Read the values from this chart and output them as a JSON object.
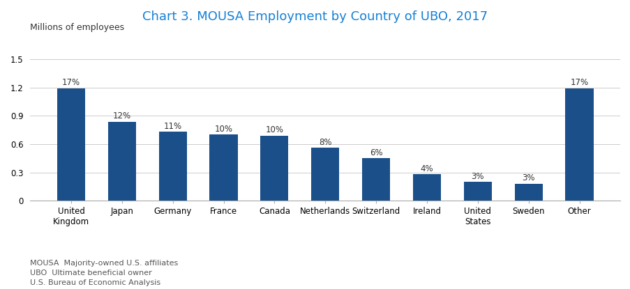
{
  "title": "Chart 3. MOUSA Employment by Country of UBO, 2017",
  "title_color": "#1580d4",
  "ylabel": "Millions of employees",
  "categories": [
    "United\nKingdom",
    "Japan",
    "Germany",
    "France",
    "Canada",
    "Netherlands",
    "Switzerland",
    "Ireland",
    "United\nStates",
    "Sweden",
    "Other"
  ],
  "values": [
    1.19,
    0.84,
    0.73,
    0.7,
    0.69,
    0.56,
    0.45,
    0.28,
    0.2,
    0.18,
    1.19
  ],
  "percentages": [
    "17%",
    "12%",
    "11%",
    "10%",
    "10%",
    "8%",
    "6%",
    "4%",
    "3%",
    "3%",
    "17%"
  ],
  "bar_color": "#1a4f8a",
  "ylim": [
    0,
    1.65
  ],
  "yticks": [
    0,
    0.3,
    0.6,
    0.9,
    1.2,
    1.5
  ],
  "ytick_labels": [
    "0",
    "0.3",
    "0.6",
    "0.9",
    "1.2",
    "1.5"
  ],
  "footnote_lines": [
    "MOUSA  Majority-owned U.S. affiliates",
    "UBO  Ultimate beneficial owner",
    "U.S. Bureau of Economic Analysis"
  ],
  "background_color": "#ffffff",
  "grid_color": "#cccccc",
  "title_fontsize": 13,
  "ylabel_fontsize": 9,
  "tick_fontsize": 8.5,
  "footnote_fontsize": 8
}
